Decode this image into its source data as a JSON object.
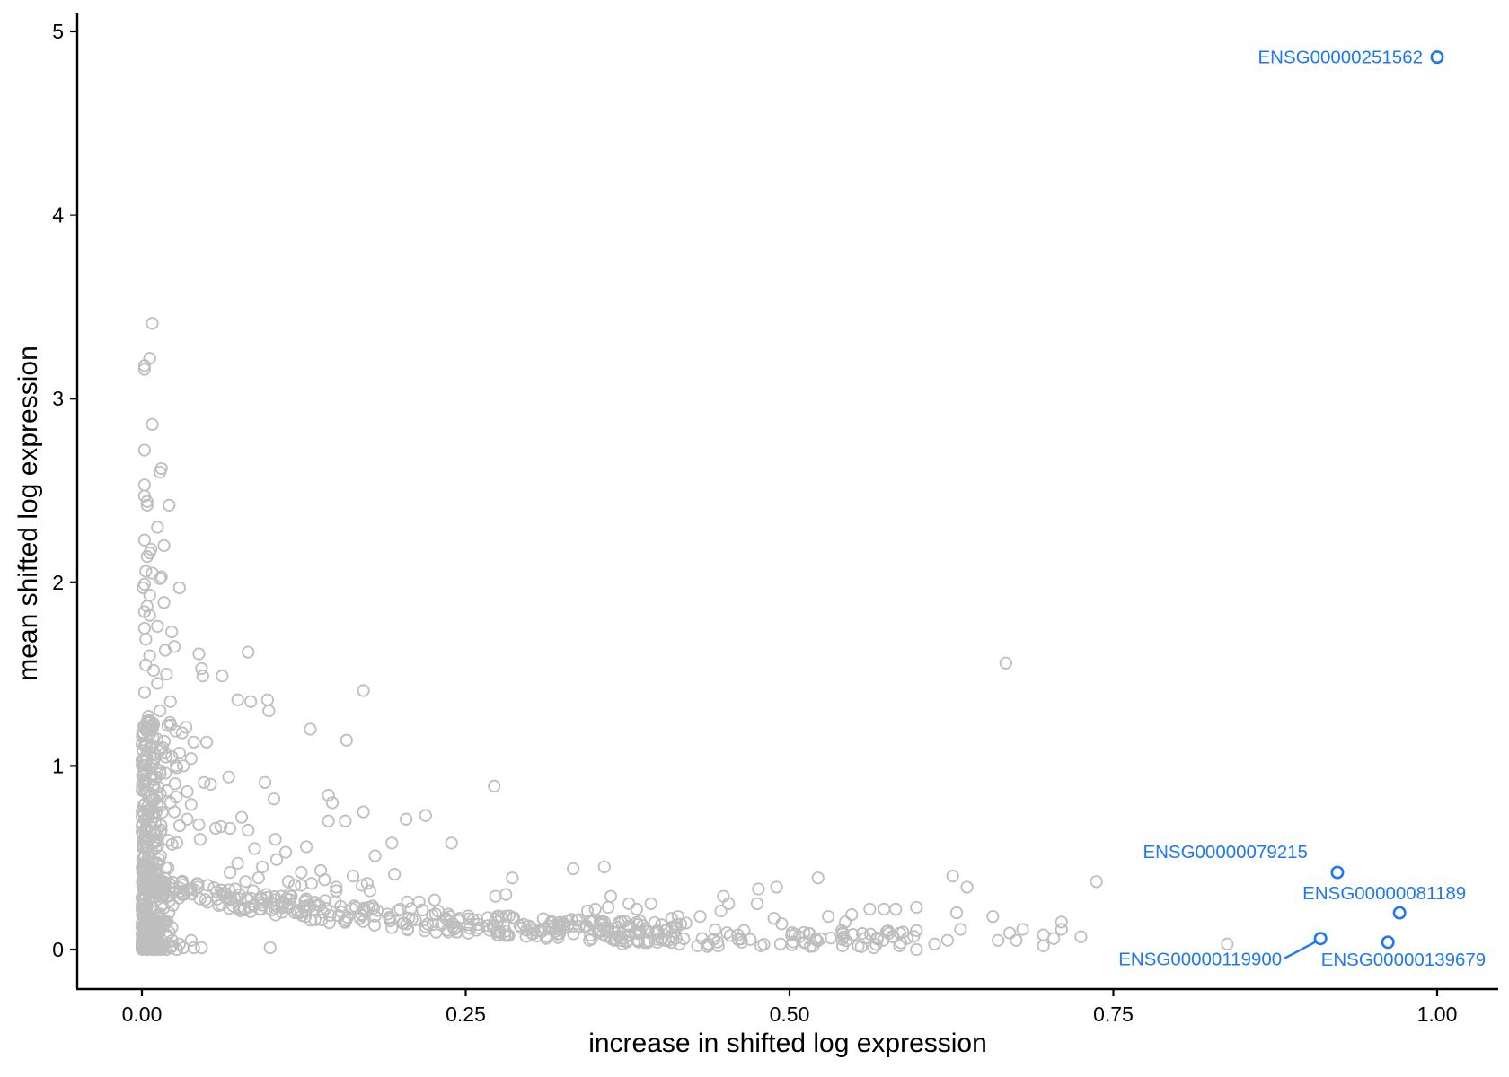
{
  "chart_data": {
    "type": "scatter",
    "title": "",
    "xlabel": "increase in shifted log expression",
    "ylabel": "mean shifted log expression",
    "xlim": [
      -0.05,
      1.05
    ],
    "ylim": [
      -0.23,
      5.1
    ],
    "x_ticks": [
      0,
      0.25,
      0.5,
      0.75,
      1
    ],
    "x_tick_labels": [
      "0.00",
      "0.25",
      "0.50",
      "0.75",
      "1.00"
    ],
    "y_ticks": [
      0,
      1,
      2,
      3,
      4,
      5
    ],
    "y_tick_labels": [
      "0",
      "1",
      "2",
      "3",
      "4",
      "5"
    ],
    "grid": false,
    "point_color": "#bebebe",
    "highlight_color": "#1f77f4",
    "points": [
      [
        0.008,
        3.41
      ],
      [
        0.006,
        3.22
      ],
      [
        0.002,
        3.18
      ],
      [
        0.002,
        3.16
      ],
      [
        0.008,
        2.86
      ],
      [
        0.002,
        2.72
      ],
      [
        0.015,
        2.62
      ],
      [
        0.014,
        2.6
      ],
      [
        0.002,
        2.53
      ],
      [
        0.002,
        2.47
      ],
      [
        0.004,
        2.44
      ],
      [
        0.004,
        2.42
      ],
      [
        0.021,
        2.42
      ],
      [
        0.012,
        2.3
      ],
      [
        0.002,
        2.23
      ],
      [
        0.017,
        2.2
      ],
      [
        0.007,
        2.18
      ],
      [
        0.006,
        2.16
      ],
      [
        0.004,
        2.14
      ],
      [
        0.003,
        2.06
      ],
      [
        0.008,
        2.05
      ],
      [
        0.015,
        2.03
      ],
      [
        0.014,
        2.02
      ],
      [
        0.002,
        1.99
      ],
      [
        0.001,
        1.97
      ],
      [
        0.029,
        1.97
      ],
      [
        0.006,
        1.93
      ],
      [
        0.017,
        1.89
      ],
      [
        0.004,
        1.87
      ],
      [
        0.002,
        1.84
      ],
      [
        0.006,
        1.82
      ],
      [
        0.012,
        1.76
      ],
      [
        0.002,
        1.75
      ],
      [
        0.023,
        1.73
      ],
      [
        0.003,
        1.69
      ],
      [
        0.025,
        1.65
      ],
      [
        0.018,
        1.63
      ],
      [
        0.006,
        1.6
      ],
      [
        0.044,
        1.61
      ],
      [
        0.082,
        1.62
      ],
      [
        0.003,
        1.55
      ],
      [
        0.009,
        1.52
      ],
      [
        0.046,
        1.53
      ],
      [
        0.047,
        1.49
      ],
      [
        0.062,
        1.49
      ],
      [
        0.019,
        1.5
      ],
      [
        0.012,
        1.45
      ],
      [
        0.002,
        1.4
      ],
      [
        0.171,
        1.41
      ],
      [
        0.074,
        1.36
      ],
      [
        0.084,
        1.35
      ],
      [
        0.097,
        1.36
      ],
      [
        0.098,
        1.3
      ],
      [
        0.022,
        1.35
      ],
      [
        0.014,
        1.3
      ],
      [
        0.005,
        1.27
      ],
      [
        0.02,
        1.22
      ],
      [
        0.034,
        1.21
      ],
      [
        0.13,
        1.2
      ],
      [
        0.026,
        1.19
      ],
      [
        0.031,
        1.18
      ],
      [
        0.158,
        1.14
      ],
      [
        0.04,
        1.13
      ],
      [
        0.05,
        1.13
      ],
      [
        0.016,
        1.1
      ],
      [
        0.029,
        1.07
      ],
      [
        0.023,
        1.05
      ],
      [
        0.038,
        1.04
      ],
      [
        0.032,
        1.0
      ],
      [
        0.027,
        0.99
      ],
      [
        0.067,
        0.94
      ],
      [
        0.048,
        0.91
      ],
      [
        0.053,
        0.9
      ],
      [
        0.095,
        0.91
      ],
      [
        0.035,
        0.86
      ],
      [
        0.102,
        0.82
      ],
      [
        0.144,
        0.84
      ],
      [
        0.147,
        0.8
      ],
      [
        0.272,
        0.89
      ],
      [
        0.022,
        0.8
      ],
      [
        0.038,
        0.79
      ],
      [
        0.077,
        0.72
      ],
      [
        0.219,
        0.73
      ],
      [
        0.204,
        0.71
      ],
      [
        0.171,
        0.75
      ],
      [
        0.144,
        0.7
      ],
      [
        0.157,
        0.7
      ],
      [
        0.025,
        0.75
      ],
      [
        0.035,
        0.71
      ],
      [
        0.044,
        0.68
      ],
      [
        0.061,
        0.67
      ],
      [
        0.057,
        0.66
      ],
      [
        0.068,
        0.66
      ],
      [
        0.082,
        0.65
      ],
      [
        0.103,
        0.6
      ],
      [
        0.127,
        0.56
      ],
      [
        0.239,
        0.58
      ],
      [
        0.193,
        0.58
      ],
      [
        0.18,
        0.51
      ],
      [
        0.074,
        0.47
      ],
      [
        0.045,
        0.6
      ],
      [
        0.087,
        0.55
      ],
      [
        0.093,
        0.45
      ],
      [
        0.111,
        0.53
      ],
      [
        0.104,
        0.49
      ],
      [
        0.123,
        0.42
      ],
      [
        0.138,
        0.43
      ],
      [
        0.141,
        0.38
      ],
      [
        0.15,
        0.34
      ],
      [
        0.163,
        0.4
      ],
      [
        0.174,
        0.36
      ],
      [
        0.195,
        0.41
      ],
      [
        0.118,
        0.35
      ],
      [
        0.113,
        0.37
      ],
      [
        0.123,
        0.35
      ],
      [
        0.131,
        0.36
      ],
      [
        0.08,
        0.37
      ],
      [
        0.09,
        0.39
      ],
      [
        0.068,
        0.42
      ],
      [
        0.072,
        0.33
      ],
      [
        0.086,
        0.32
      ],
      [
        0.096,
        0.3
      ],
      [
        0.114,
        0.3
      ],
      [
        0.15,
        0.32
      ],
      [
        0.17,
        0.35
      ],
      [
        0.176,
        0.32
      ],
      [
        0.226,
        0.27
      ],
      [
        0.205,
        0.26
      ],
      [
        0.214,
        0.26
      ],
      [
        0.273,
        0.29
      ],
      [
        0.281,
        0.3
      ],
      [
        0.286,
        0.39
      ],
      [
        0.333,
        0.44
      ],
      [
        0.357,
        0.45
      ],
      [
        0.362,
        0.29
      ],
      [
        0.36,
        0.23
      ],
      [
        0.344,
        0.21
      ],
      [
        0.35,
        0.22
      ],
      [
        0.376,
        0.25
      ],
      [
        0.382,
        0.22
      ],
      [
        0.393,
        0.25
      ],
      [
        0.409,
        0.17
      ],
      [
        0.414,
        0.18
      ],
      [
        0.431,
        0.18
      ],
      [
        0.447,
        0.21
      ],
      [
        0.449,
        0.29
      ],
      [
        0.453,
        0.25
      ],
      [
        0.476,
        0.33
      ],
      [
        0.49,
        0.34
      ],
      [
        0.475,
        0.25
      ],
      [
        0.488,
        0.17
      ],
      [
        0.494,
        0.14
      ],
      [
        0.522,
        0.39
      ],
      [
        0.53,
        0.18
      ],
      [
        0.543,
        0.15
      ],
      [
        0.548,
        0.19
      ],
      [
        0.562,
        0.22
      ],
      [
        0.573,
        0.22
      ],
      [
        0.582,
        0.22
      ],
      [
        0.598,
        0.23
      ],
      [
        0.626,
        0.4
      ],
      [
        0.629,
        0.2
      ],
      [
        0.637,
        0.34
      ],
      [
        0.657,
        0.18
      ],
      [
        0.667,
        1.56
      ],
      [
        0.67,
        0.09
      ],
      [
        0.68,
        0.11
      ],
      [
        0.696,
        0.08
      ],
      [
        0.71,
        0.15
      ],
      [
        0.71,
        0.11
      ],
      [
        0.725,
        0.07
      ],
      [
        0.737,
        0.37
      ],
      [
        0.838,
        0.03
      ],
      [
        0.661,
        0.05
      ],
      [
        0.675,
        0.05
      ],
      [
        0.696,
        0.02
      ],
      [
        0.704,
        0.06
      ],
      [
        0.598,
        0.0
      ],
      [
        0.612,
        0.03
      ],
      [
        0.622,
        0.05
      ],
      [
        0.632,
        0.11
      ],
      [
        0.585,
        0.02
      ],
      [
        0.565,
        0.01
      ],
      [
        0.553,
        0.02
      ],
      [
        0.541,
        0.02
      ],
      [
        0.524,
        0.06
      ],
      [
        0.512,
        0.04
      ],
      [
        0.493,
        0.03
      ],
      [
        0.478,
        0.02
      ],
      [
        0.463,
        0.04
      ],
      [
        0.445,
        0.02
      ],
      [
        0.429,
        0.02
      ],
      [
        0.415,
        0.03
      ],
      [
        0.398,
        0.04
      ],
      [
        0.382,
        0.05
      ],
      [
        0.371,
        0.03
      ],
      [
        0.099,
        0.01
      ],
      [
        0.038,
        0.05
      ],
      [
        0.029,
        0.03
      ],
      [
        0.017,
        0.03
      ],
      [
        0.012,
        0.02
      ],
      [
        0.024,
        0.02
      ],
      [
        0.04,
        0.01
      ],
      [
        0.046,
        0.01
      ],
      [
        0.032,
        0.01
      ],
      [
        0.008,
        0.01
      ],
      [
        0.004,
        0.0
      ],
      [
        0.001,
        0.01
      ],
      [
        0.005,
        0.03
      ],
      [
        0.003,
        0.05
      ],
      [
        0.002,
        0.07
      ],
      [
        0.007,
        0.04
      ],
      [
        0.01,
        0.06
      ],
      [
        0.019,
        0.0
      ],
      [
        0.022,
        0.01
      ],
      [
        0.027,
        0.0
      ]
    ],
    "highlighted": [
      {
        "label": "ENSG00000251562",
        "x": 1.0,
        "y": 4.86
      },
      {
        "label": "ENSG00000079215",
        "x": 0.923,
        "y": 0.42
      },
      {
        "label": "ENSG00000081189",
        "x": 0.971,
        "y": 0.2
      },
      {
        "label": "ENSG00000119900",
        "x": 0.91,
        "y": 0.06
      },
      {
        "label": "ENSG00000139679",
        "x": 0.962,
        "y": 0.04
      }
    ]
  }
}
